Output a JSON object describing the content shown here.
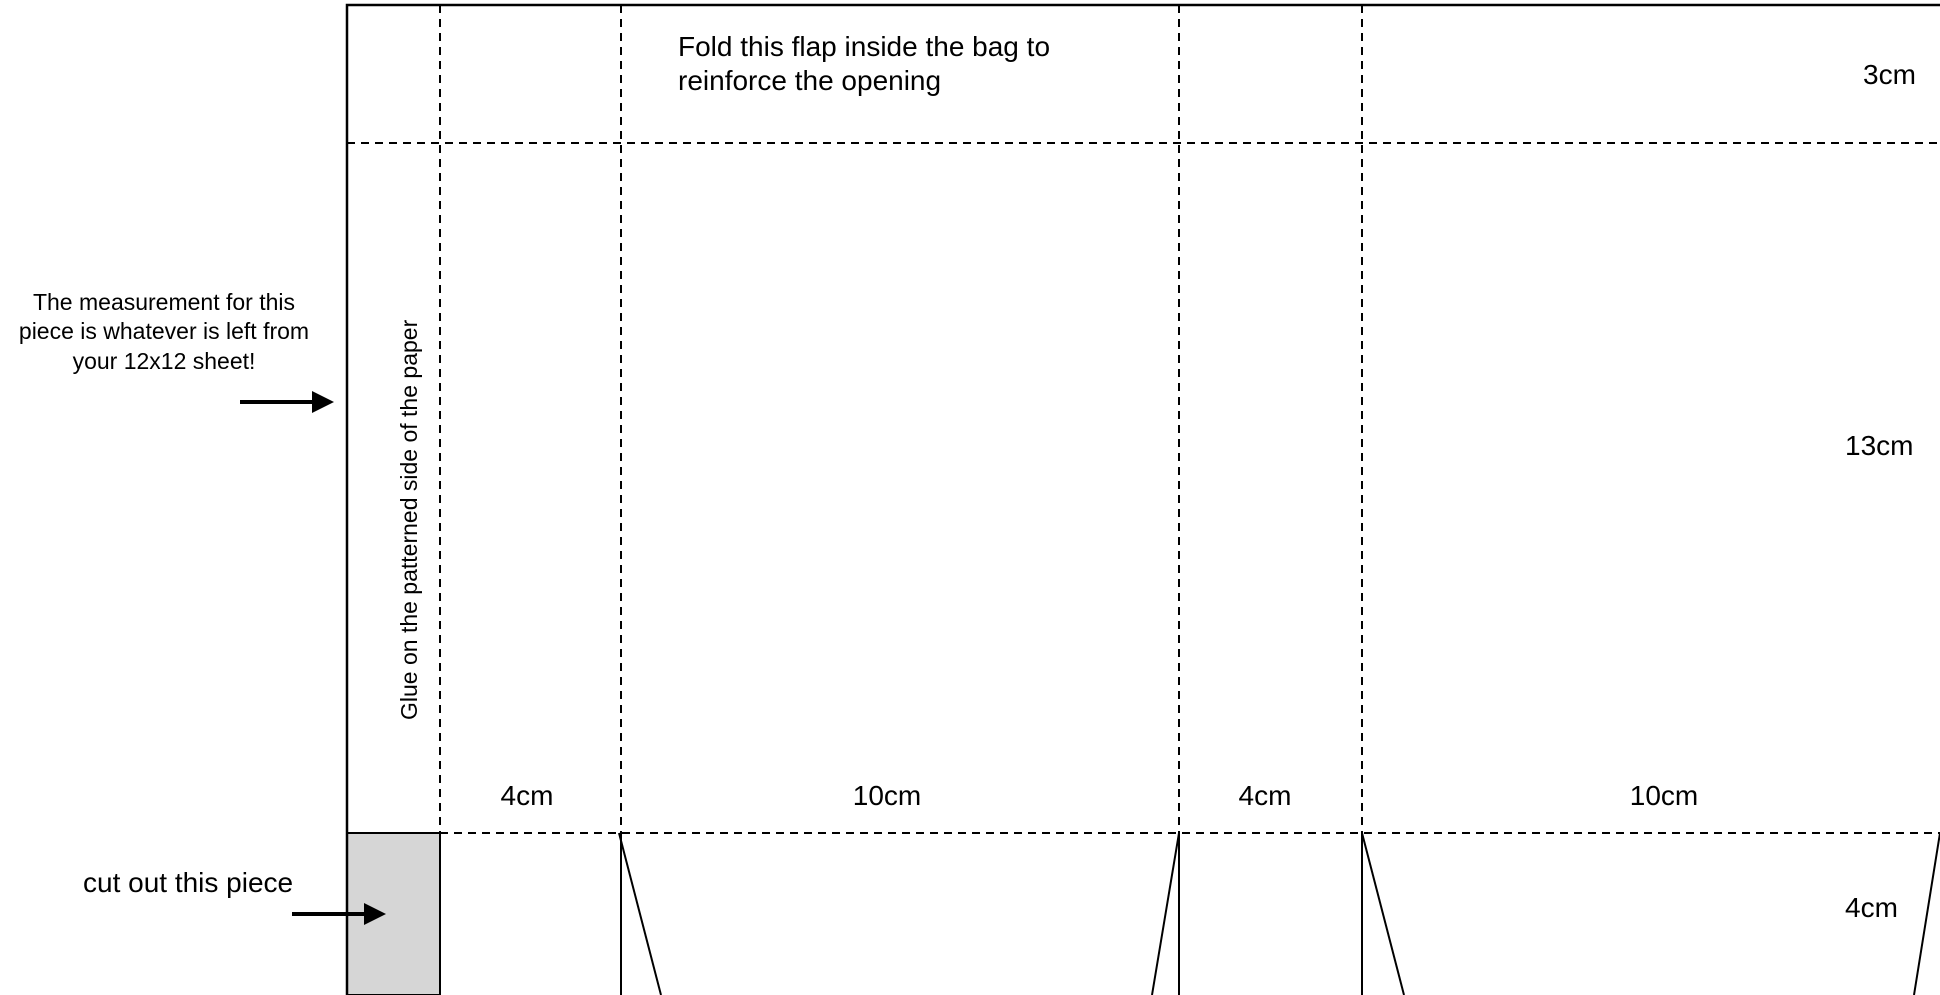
{
  "labels": {
    "fold_flap_line1": "Fold this flap inside the bag to",
    "fold_flap_line2": "reinforce the opening",
    "glue_note": "Glue on the patterned side of the paper",
    "measurement_note": "The measurement for this piece is whatever is left from your 12x12 sheet!",
    "cut_out_note": "cut out this piece"
  },
  "dimensions": {
    "top_flap_height": "3cm",
    "body_height": "13cm",
    "bottom_height": "4cm",
    "panel_1_width": "4cm",
    "panel_2_width": "10cm",
    "panel_3_width": "4cm",
    "panel_4_width": "10cm"
  },
  "colors": {
    "line": "#000000",
    "cut_piece_fill": "#d6d6d6",
    "background": "#ffffff"
  }
}
